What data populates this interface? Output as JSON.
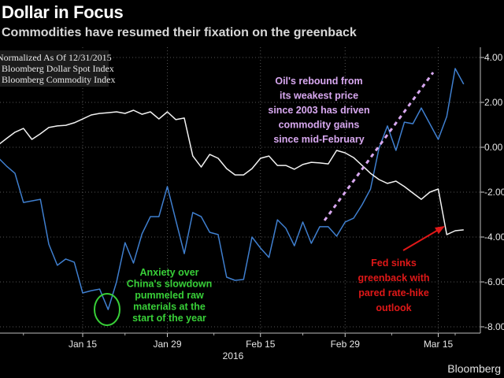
{
  "header": {
    "title": "Dollar in Focus",
    "subtitle": "Commodities have resumed their fixation on the greenback"
  },
  "brand": "Bloomberg",
  "chart_data": {
    "type": "line",
    "legend": {
      "title": "Normalized As Of 12/31/2015",
      "entries": [
        "Bloomberg Dollar Spot Index",
        "Bloomberg Commodity Index"
      ],
      "placement": "top-left"
    },
    "y_axis": {
      "side": "right",
      "ylim": [
        -8.5,
        4.5
      ],
      "ticks": [
        4,
        2,
        0,
        -2,
        -4,
        -6,
        -8
      ],
      "tick_labels": [
        "4.00",
        "2.00",
        "0.00",
        "-2.00",
        "-4.00",
        "-6.00",
        "-8.00"
      ]
    },
    "x_axis": {
      "tick_dates": [
        "2016-01-15",
        "2016-01-29",
        "2016-02-15",
        "2016-02-29",
        "2016-03-15"
      ],
      "tick_labels": [
        "Jan 15",
        "Jan 29",
        "Feb 15",
        "Feb 29",
        "Mar 15"
      ],
      "year_label": "2016",
      "xlim": [
        "2016-01-01",
        "2016-03-21"
      ]
    },
    "grid": true,
    "x": [
      "2016-01-01",
      "2016-01-04",
      "2016-01-05",
      "2016-01-06",
      "2016-01-07",
      "2016-01-08",
      "2016-01-11",
      "2016-01-12",
      "2016-01-13",
      "2016-01-14",
      "2016-01-15",
      "2016-01-18",
      "2016-01-19",
      "2016-01-20",
      "2016-01-21",
      "2016-01-22",
      "2016-01-25",
      "2016-01-26",
      "2016-01-27",
      "2016-01-28",
      "2016-01-29",
      "2016-02-01",
      "2016-02-02",
      "2016-02-03",
      "2016-02-04",
      "2016-02-05",
      "2016-02-08",
      "2016-02-09",
      "2016-02-10",
      "2016-02-11",
      "2016-02-12",
      "2016-02-15",
      "2016-02-16",
      "2016-02-17",
      "2016-02-18",
      "2016-02-19",
      "2016-02-22",
      "2016-02-23",
      "2016-02-24",
      "2016-02-25",
      "2016-02-26",
      "2016-02-29",
      "2016-03-01",
      "2016-03-02",
      "2016-03-03",
      "2016-03-04",
      "2016-03-07",
      "2016-03-08",
      "2016-03-09",
      "2016-03-10",
      "2016-03-11",
      "2016-03-14",
      "2016-03-15",
      "2016-03-16",
      "2016-03-17",
      "2016-03-18"
    ],
    "series": [
      {
        "name": "Bloomberg Dollar Spot Index",
        "color": "#f2f2f2",
        "values": [
          0.1,
          0.39,
          0.67,
          0.84,
          0.35,
          0.6,
          0.88,
          0.95,
          0.98,
          1.09,
          1.26,
          1.44,
          1.51,
          1.54,
          1.58,
          1.51,
          1.65,
          1.47,
          1.58,
          1.26,
          1.58,
          1.23,
          1.3,
          -0.39,
          -0.88,
          -0.32,
          -0.49,
          -0.95,
          -1.23,
          -1.23,
          -0.95,
          -0.49,
          -0.39,
          -0.81,
          -0.81,
          -0.98,
          -0.77,
          -0.67,
          -0.7,
          -0.74,
          -0.14,
          -0.25,
          -0.46,
          -0.81,
          -1.16,
          -1.44,
          -1.61,
          -1.51,
          -1.75,
          -2.04,
          -2.32,
          -2.0,
          -1.86,
          -3.89,
          -3.72,
          -3.68
        ]
      },
      {
        "name": "Bloomberg Commodity Index",
        "color": "#3f7fcf",
        "values": [
          -0.46,
          -0.84,
          -1.16,
          -2.46,
          -2.39,
          -2.32,
          -4.32,
          -5.26,
          -4.98,
          -5.12,
          -6.49,
          -6.39,
          -6.32,
          -7.23,
          -6.0,
          -4.25,
          -5.16,
          -3.86,
          -3.09,
          -3.09,
          -1.75,
          -3.26,
          -4.74,
          -2.91,
          -3.09,
          -3.79,
          -3.89,
          -5.79,
          -5.93,
          -5.89,
          -4.0,
          -4.49,
          -4.91,
          -3.23,
          -3.61,
          -4.39,
          -3.33,
          -4.28,
          -3.54,
          -3.54,
          -3.96,
          -3.33,
          -3.16,
          -2.56,
          -1.86,
          -0.04,
          0.95,
          -0.14,
          1.12,
          1.05,
          1.75,
          1.05,
          0.35,
          1.37,
          3.51,
          2.81
        ]
      }
    ],
    "annotations": [
      {
        "lines": [
          "Oil's rebound from",
          "its weakest price",
          "since 2003 has driven",
          "commodity gains",
          "since mid-February"
        ],
        "color": "#d8a8f0"
      },
      {
        "lines": [
          "Anxiety over",
          "China's slowdown",
          "pummeled raw",
          "materials at the",
          "start of the year"
        ],
        "color": "#38d038"
      },
      {
        "lines": [
          "Fed sinks",
          "greenback with",
          "pared rate-hike",
          "outlook"
        ],
        "color": "#e01818"
      }
    ]
  }
}
